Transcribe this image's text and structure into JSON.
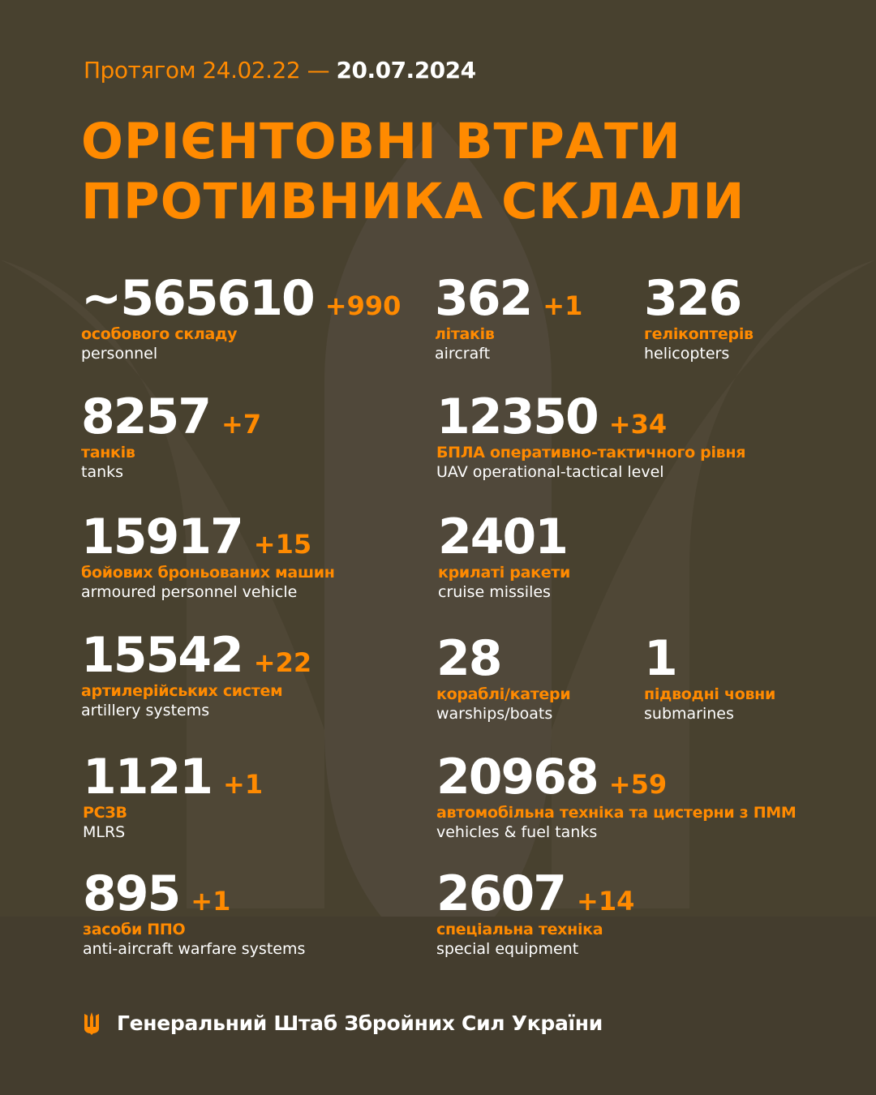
{
  "header": {
    "period_prefix": "Протягом 24.02.22 —",
    "period_date": "20.07.2024",
    "title_line1": "ОРІЄНТОВНІ ВТРАТИ",
    "title_line2": "ПРОТИВНИКА СКЛАЛИ"
  },
  "colors": {
    "background": "#48412f",
    "accent": "#ff8a00",
    "text": "#ffffff"
  },
  "stats": [
    {
      "value": "~565610",
      "delta": "+990",
      "ua": "особового складу",
      "en": "personnel"
    },
    {
      "value": "362",
      "delta": "+1",
      "ua": "літаків",
      "en": "aircraft"
    },
    {
      "value": "326",
      "delta": "",
      "ua": "гелікоптерів",
      "en": "helicopters"
    },
    {
      "value": "8257",
      "delta": "+7",
      "ua": "танків",
      "en": "tanks"
    },
    {
      "value": "12350",
      "delta": "+34",
      "ua": "БПЛА оперативно-тактичного рівня",
      "en": "UAV operational-tactical level"
    },
    {
      "value": "15917",
      "delta": "+15",
      "ua": "бойових броньованих машин",
      "en": "armoured personnel vehicle"
    },
    {
      "value": "2401",
      "delta": "",
      "ua": "крилаті ракети",
      "en": "cruise missiles"
    },
    {
      "value": "15542",
      "delta": "+22",
      "ua": "артилерійських систем",
      "en": "artillery systems"
    },
    {
      "value": "28",
      "delta": "",
      "ua": "кораблі/катери",
      "en": "warships/boats"
    },
    {
      "value": "1",
      "delta": "",
      "ua": "підводні човни",
      "en": "submarines"
    },
    {
      "value": "1121",
      "delta": "+1",
      "ua": "РСЗВ",
      "en": "MLRS"
    },
    {
      "value": "20968",
      "delta": "+59",
      "ua": "автомобільна техніка та цистерни з ПММ",
      "en": "vehicles & fuel tanks"
    },
    {
      "value": "895",
      "delta": "+1",
      "ua": "засоби ППО",
      "en": "anti-aircraft warfare systems"
    },
    {
      "value": "2607",
      "delta": "+14",
      "ua": "спеціальна техніка",
      "en": "special equipment"
    }
  ],
  "footer": {
    "icon": "trident-icon",
    "text": "Генеральний Штаб Збройних Сил України"
  }
}
